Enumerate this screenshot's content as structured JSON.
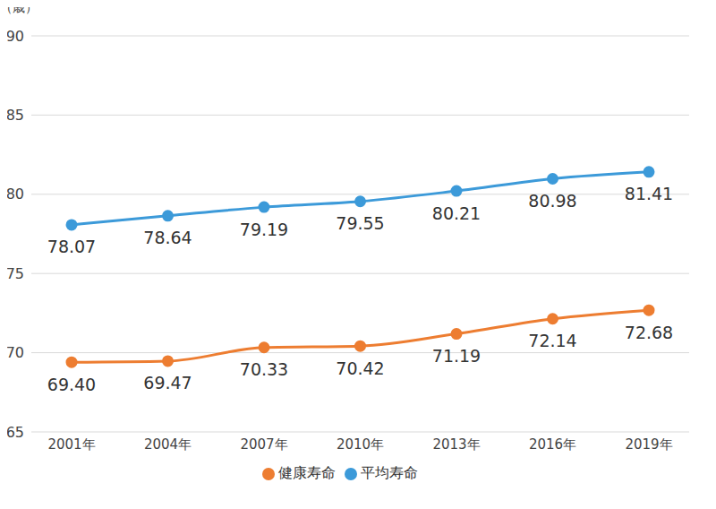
{
  "chart_data": {
    "type": "line",
    "y_label": "（歳）",
    "categories": [
      "2001年",
      "2004年",
      "2007年",
      "2010年",
      "2013年",
      "2016年",
      "2019年"
    ],
    "series": [
      {
        "name": "平均寿命",
        "color": "#3c9ad9",
        "marker": "circle",
        "values": [
          78.07,
          78.64,
          79.19,
          79.55,
          80.21,
          80.98,
          81.41
        ],
        "value_labels": [
          "78.07",
          "78.64",
          "79.19",
          "79.55",
          "80.21",
          "80.98",
          "81.41"
        ]
      },
      {
        "name": "健康寿命",
        "color": "#ed7d31",
        "marker": "circle",
        "values": [
          69.4,
          69.47,
          70.33,
          70.42,
          71.19,
          72.14,
          72.68
        ],
        "value_labels": [
          "69.40",
          "69.47",
          "70.33",
          "70.42",
          "71.19",
          "72.14",
          "72.68"
        ]
      }
    ],
    "ylim": [
      65,
      90
    ],
    "yticks": [
      65,
      70,
      75,
      80,
      85,
      90
    ],
    "grid": true,
    "data_labels": true,
    "legend": "bottom"
  }
}
